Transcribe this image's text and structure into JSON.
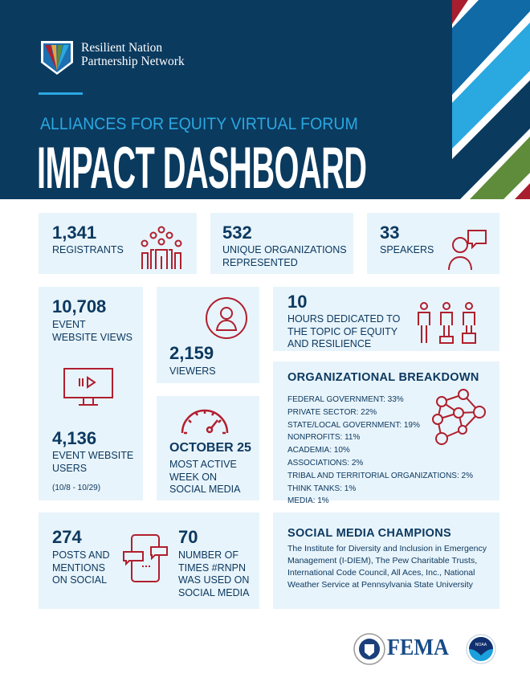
{
  "header": {
    "org_name_line1": "Resilient Nation",
    "org_name_line2": "Partnership Network",
    "subtitle": "ALLIANCES FOR EQUITY VIRTUAL FORUM",
    "title": "IMPACT DASHBOARD"
  },
  "stats": {
    "registrants": {
      "value": "1,341",
      "label": "REGISTRANTS"
    },
    "organizations": {
      "value": "532",
      "label_line1": "UNIQUE ORGANIZATIONS",
      "label_line2": "REPRESENTED"
    },
    "speakers": {
      "value": "33",
      "label": "SPEAKERS"
    },
    "website_views": {
      "value": "10,708",
      "label_line1": "EVENT",
      "label_line2": "WEBSITE VIEWS"
    },
    "website_users": {
      "value": "4,136",
      "label_line1": "EVENT WEBSITE",
      "label_line2": "USERS",
      "date_range": "(10/8 - 10/29)"
    },
    "viewers": {
      "value": "2,159",
      "label": "VIEWERS"
    },
    "active_week": {
      "value": "OCTOBER 25",
      "label_line1": "MOST ACTIVE",
      "label_line2": "WEEK ON",
      "label_line3": "SOCIAL MEDIA"
    },
    "hours": {
      "value": "10",
      "label_line1": "HOURS DEDICATED TO",
      "label_line2": "THE TOPIC OF EQUITY",
      "label_line3": "AND RESILIENCE"
    },
    "posts": {
      "value": "274",
      "label_line1": "POSTS AND",
      "label_line2": "MENTIONS",
      "label_line3": "ON SOCIAL"
    },
    "hashtag": {
      "value": "70",
      "label_line1": "NUMBER OF",
      "label_line2": "TIMES #RNPN",
      "label_line3": "WAS USED ON",
      "label_line4": "SOCIAL MEDIA"
    }
  },
  "breakdown": {
    "title": "ORGANIZATIONAL BREAKDOWN",
    "items": [
      "FEDERAL GOVERNMENT: 33%",
      "PRIVATE SECTOR: 22%",
      "STATE/LOCAL GOVERNMENT: 19%",
      "NONPROFITS: 11%",
      "ACADEMIA: 10%",
      "ASSOCIATIONS: 2%",
      "TRIBAL AND TERRITORIAL ORGANIZATIONS: 2%",
      "THINK TANKS: 1%",
      "MEDIA: 1%"
    ]
  },
  "champions": {
    "title": "SOCIAL MEDIA CHAMPIONS",
    "text": "The Institute for Diversity and Inclusion in Emergency Management (I-DIEM), The Pew Charitable Trusts, International Code Council, All Aces, Inc., National Weather Service at Pennsylvania State University"
  },
  "footer": {
    "fema": "FEMA",
    "noaa": "NOAA"
  },
  "colors": {
    "navy": "#0b3a5f",
    "accent_blue": "#2aa8e0",
    "red": "#b01f2e",
    "card": "#e8f4fb",
    "green": "#5e8c3a"
  }
}
